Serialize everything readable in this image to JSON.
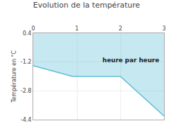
{
  "chart_data": {
    "type": "area",
    "title": "Evolution de la température",
    "y_label": "Température en °C",
    "x": [
      0,
      0.9,
      2.0,
      3.0
    ],
    "series": [
      {
        "color": "#5bbcd6",
        "values": [
          -1.4,
          -2.0,
          -2.0,
          -4.2
        ]
      }
    ],
    "xlim": [
      0,
      3
    ],
    "ylim": [
      -4.4,
      0.4
    ],
    "xticks": [
      0,
      1,
      2,
      3
    ],
    "yticks": [
      0.4,
      -1.2,
      -2.8,
      -4.4
    ],
    "annotations": [
      {
        "text": "heure par heure",
        "x": 1.55,
        "y": -1.35
      }
    ],
    "grid": true
  }
}
